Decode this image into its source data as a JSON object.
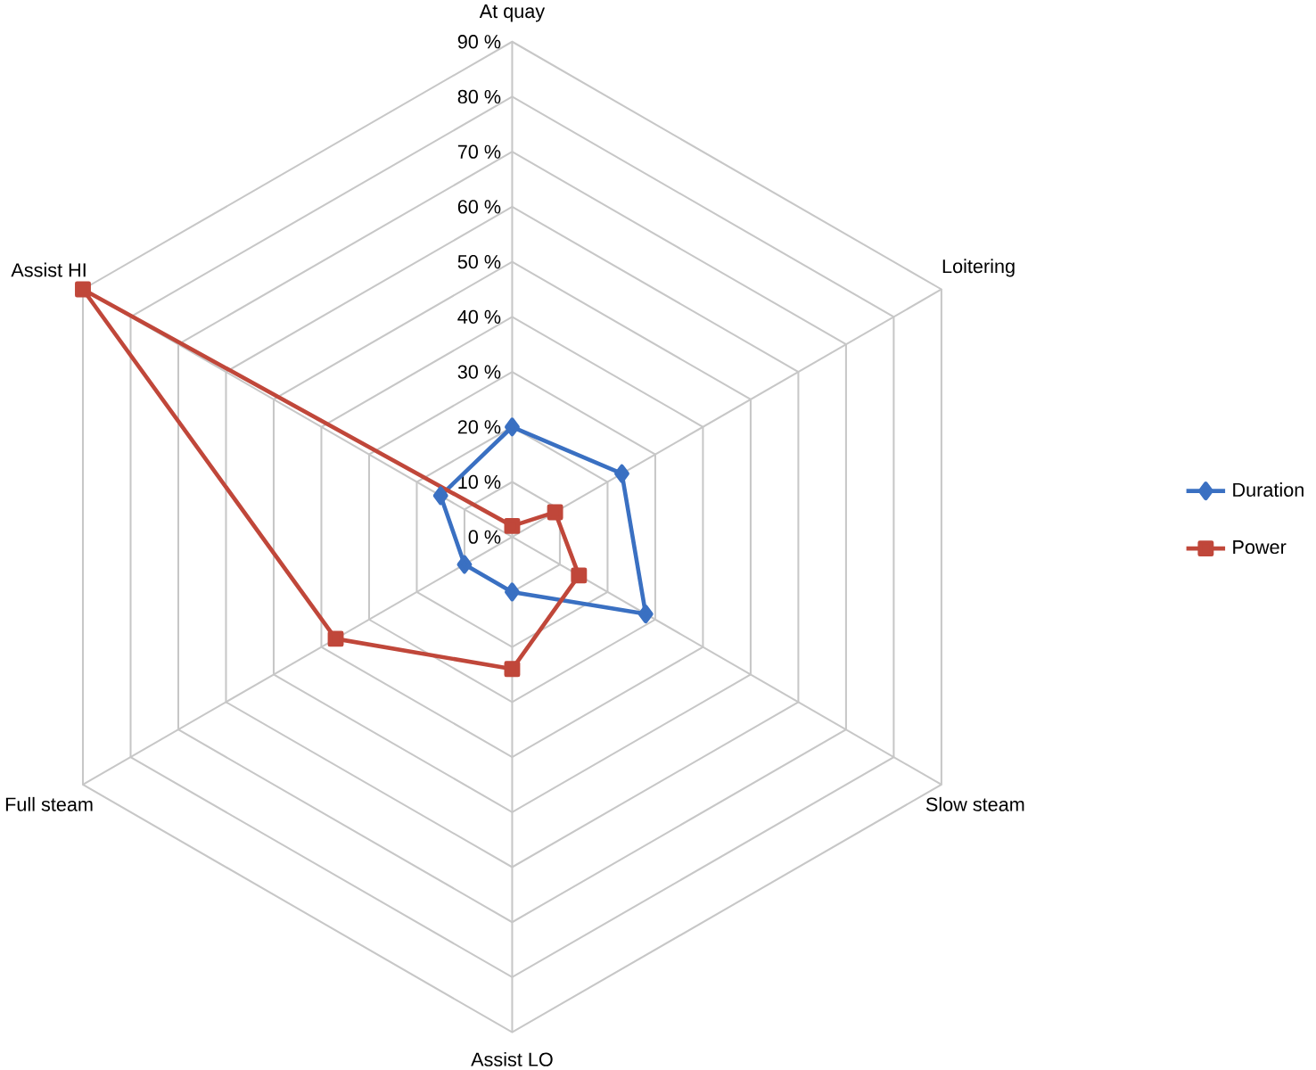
{
  "chart_data": {
    "type": "radar",
    "categories": [
      "At quay",
      "Loitering",
      "Slow steam",
      "Assist LO",
      "Full steam",
      "Assist HI"
    ],
    "series": [
      {
        "name": "Duration",
        "color": "#3a70c2",
        "marker": "diamond",
        "values": [
          20,
          23,
          28,
          10,
          10,
          15
        ]
      },
      {
        "name": "Power",
        "color": "#c0473a",
        "marker": "square",
        "values": [
          2,
          9,
          14,
          24,
          37,
          90
        ]
      }
    ],
    "ylim": [
      0,
      90
    ],
    "yticks": [
      {
        "value": 0,
        "label": "0 %"
      },
      {
        "value": 10,
        "label": "10 %"
      },
      {
        "value": 20,
        "label": "20 %"
      },
      {
        "value": 30,
        "label": "30 %"
      },
      {
        "value": 40,
        "label": "40 %"
      },
      {
        "value": 50,
        "label": "50 %"
      },
      {
        "value": 60,
        "label": "60 %"
      },
      {
        "value": 70,
        "label": "70 %"
      },
      {
        "value": 80,
        "label": "80 %"
      },
      {
        "value": 90,
        "label": "90 %"
      }
    ],
    "grid": true,
    "legend": "right"
  }
}
